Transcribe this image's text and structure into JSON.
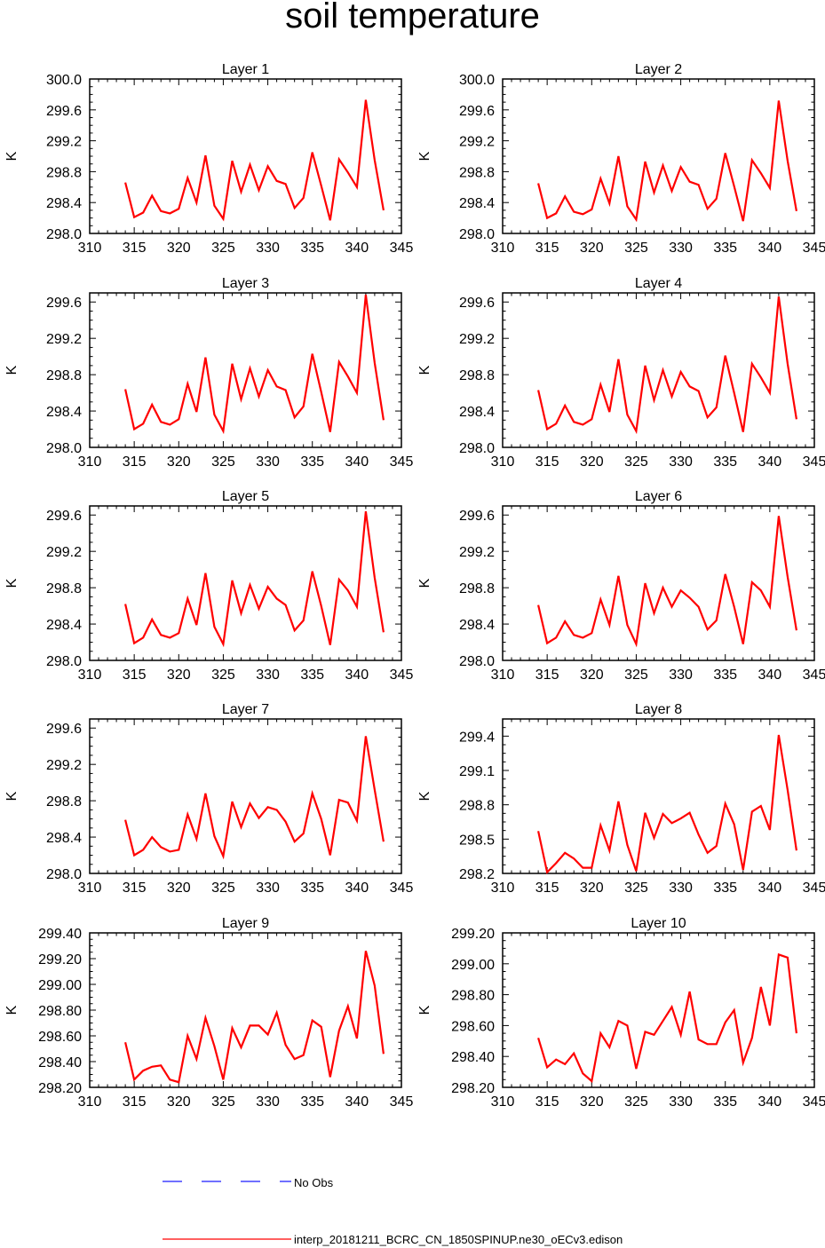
{
  "title": "soil temperature",
  "x_ticks": [
    310,
    315,
    320,
    325,
    330,
    335,
    340,
    345
  ],
  "xlim": [
    310,
    345
  ],
  "x": [
    314,
    315,
    316,
    317,
    318,
    319,
    320,
    321,
    322,
    323,
    324,
    325,
    326,
    327,
    328,
    329,
    330,
    331,
    332,
    333,
    334,
    335,
    336,
    337,
    338,
    339,
    340,
    341,
    342,
    343
  ],
  "legend": {
    "no_obs": "No Obs",
    "model": "interp_20181211_BCRC_CN_1850SPINUP.ne30_oECv3.edison"
  },
  "colors": {
    "model": "#ff0000",
    "no_obs": "#1a1aff",
    "axis": "#000000"
  },
  "chart_data": [
    {
      "type": "line",
      "title": "Layer 1",
      "ylabel": "K",
      "ylim": [
        298.0,
        300.0
      ],
      "yticks": [
        "298.0",
        "298.4",
        "298.8",
        "299.2",
        "299.6",
        "300.0"
      ],
      "series": [
        {
          "values": [
            298.66,
            298.21,
            298.27,
            298.49,
            298.29,
            298.26,
            298.32,
            298.72,
            298.4,
            299.01,
            298.36,
            298.19,
            298.94,
            298.54,
            298.89,
            298.56,
            298.87,
            298.68,
            298.64,
            298.33,
            298.46,
            299.05,
            298.62,
            298.17,
            298.96,
            298.79,
            298.6,
            299.73,
            298.95,
            298.3
          ]
        }
      ]
    },
    {
      "type": "line",
      "title": "Layer 2",
      "ylabel": "K",
      "ylim": [
        298.0,
        300.0
      ],
      "yticks": [
        "298.0",
        "298.4",
        "298.8",
        "299.2",
        "299.6",
        "300.0"
      ],
      "series": [
        {
          "values": [
            298.65,
            298.2,
            298.26,
            298.48,
            298.28,
            298.25,
            298.31,
            298.71,
            298.39,
            299.0,
            298.35,
            298.18,
            298.93,
            298.53,
            298.88,
            298.55,
            298.86,
            298.67,
            298.63,
            298.32,
            298.45,
            299.04,
            298.61,
            298.16,
            298.95,
            298.78,
            298.59,
            299.72,
            298.94,
            298.29
          ]
        }
      ]
    },
    {
      "type": "line",
      "title": "Layer 3",
      "ylabel": "K",
      "ylim": [
        298.0,
        299.7
      ],
      "yticks": [
        "298.0",
        "298.4",
        "298.8",
        "299.2",
        "299.6"
      ],
      "series": [
        {
          "values": [
            298.64,
            298.2,
            298.26,
            298.47,
            298.28,
            298.25,
            298.31,
            298.7,
            298.39,
            298.99,
            298.36,
            298.18,
            298.92,
            298.53,
            298.87,
            298.56,
            298.85,
            298.67,
            298.63,
            298.33,
            298.45,
            299.03,
            298.61,
            298.17,
            298.94,
            298.78,
            298.6,
            299.68,
            298.93,
            298.3
          ]
        }
      ]
    },
    {
      "type": "line",
      "title": "Layer 4",
      "ylabel": "K",
      "ylim": [
        298.0,
        299.7
      ],
      "yticks": [
        "298.0",
        "298.4",
        "298.8",
        "299.2",
        "299.6"
      ],
      "series": [
        {
          "values": [
            298.63,
            298.2,
            298.26,
            298.46,
            298.28,
            298.25,
            298.31,
            298.69,
            298.39,
            298.97,
            298.36,
            298.18,
            298.9,
            298.52,
            298.85,
            298.56,
            298.83,
            298.67,
            298.62,
            298.33,
            298.44,
            299.01,
            298.6,
            298.17,
            298.92,
            298.77,
            298.6,
            299.66,
            298.92,
            298.31
          ]
        }
      ]
    },
    {
      "type": "line",
      "title": "Layer 5",
      "ylabel": "K",
      "ylim": [
        298.0,
        299.7
      ],
      "yticks": [
        "298.0",
        "298.4",
        "298.8",
        "299.2",
        "299.6"
      ],
      "series": [
        {
          "values": [
            298.62,
            298.19,
            298.25,
            298.45,
            298.28,
            298.25,
            298.3,
            298.68,
            298.39,
            298.96,
            298.37,
            298.18,
            298.88,
            298.52,
            298.83,
            298.57,
            298.81,
            298.68,
            298.61,
            298.33,
            298.44,
            298.98,
            298.6,
            298.17,
            298.89,
            298.77,
            298.59,
            299.64,
            298.91,
            298.31
          ]
        }
      ]
    },
    {
      "type": "line",
      "title": "Layer 6",
      "ylabel": "K",
      "ylim": [
        298.0,
        299.7
      ],
      "yticks": [
        "298.0",
        "298.4",
        "298.8",
        "299.2",
        "299.6"
      ],
      "series": [
        {
          "values": [
            298.61,
            298.19,
            298.25,
            298.43,
            298.28,
            298.25,
            298.3,
            298.67,
            298.39,
            298.93,
            298.39,
            298.18,
            298.85,
            298.52,
            298.8,
            298.59,
            298.77,
            298.69,
            298.59,
            298.34,
            298.44,
            298.95,
            298.59,
            298.18,
            298.86,
            298.77,
            298.59,
            299.59,
            298.92,
            298.33
          ]
        }
      ]
    },
    {
      "type": "line",
      "title": "Layer 7",
      "ylabel": "K",
      "ylim": [
        298.0,
        299.7
      ],
      "yticks": [
        "298.0",
        "298.4",
        "298.8",
        "299.2",
        "299.6"
      ],
      "series": [
        {
          "values": [
            298.59,
            298.2,
            298.26,
            298.4,
            298.29,
            298.24,
            298.26,
            298.65,
            298.38,
            298.88,
            298.41,
            298.19,
            298.79,
            298.51,
            298.77,
            298.61,
            298.73,
            298.7,
            298.57,
            298.35,
            298.44,
            298.88,
            298.6,
            298.2,
            298.81,
            298.78,
            298.58,
            299.51,
            298.92,
            298.35
          ]
        }
      ]
    },
    {
      "type": "line",
      "title": "Layer 8",
      "ylabel": "K",
      "ylim": [
        298.2,
        299.55
      ],
      "yticks": [
        "298.2",
        "298.5",
        "298.8",
        "299.1",
        "299.4"
      ],
      "series": [
        {
          "values": [
            298.57,
            298.21,
            298.29,
            298.38,
            298.33,
            298.25,
            298.25,
            298.62,
            298.4,
            298.83,
            298.45,
            298.22,
            298.73,
            298.51,
            298.72,
            298.64,
            298.68,
            298.73,
            298.54,
            298.38,
            298.44,
            298.81,
            298.63,
            298.23,
            298.74,
            298.79,
            298.58,
            299.41,
            298.93,
            298.4
          ]
        }
      ]
    },
    {
      "type": "line",
      "title": "Layer 9",
      "ylabel": "K",
      "ylim": [
        298.2,
        299.4
      ],
      "yticks": [
        "298.20",
        "298.40",
        "298.60",
        "298.80",
        "299.00",
        "299.20",
        "299.40"
      ],
      "series": [
        {
          "values": [
            298.55,
            298.26,
            298.33,
            298.36,
            298.37,
            298.26,
            298.24,
            298.6,
            298.42,
            298.74,
            298.52,
            298.26,
            298.66,
            298.51,
            298.68,
            298.68,
            298.61,
            298.78,
            298.53,
            298.42,
            298.45,
            298.72,
            298.67,
            298.28,
            298.64,
            298.83,
            298.58,
            299.26,
            298.99,
            298.46
          ]
        }
      ]
    },
    {
      "type": "line",
      "title": "Layer 10",
      "ylabel": "K",
      "ylim": [
        298.2,
        299.2
      ],
      "yticks": [
        "298.20",
        "298.40",
        "298.60",
        "298.80",
        "299.00",
        "299.20"
      ],
      "series": [
        {
          "values": [
            298.52,
            298.33,
            298.38,
            298.35,
            298.42,
            298.29,
            298.24,
            298.55,
            298.46,
            298.63,
            298.6,
            298.32,
            298.56,
            298.54,
            298.63,
            298.72,
            298.54,
            298.82,
            298.51,
            298.48,
            298.48,
            298.62,
            298.7,
            298.36,
            298.52,
            298.85,
            298.6,
            299.06,
            299.04,
            298.55
          ]
        }
      ]
    }
  ]
}
